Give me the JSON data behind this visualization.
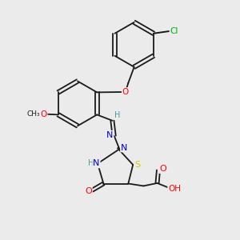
{
  "bg_color": "#ebebeb",
  "bond_color": "#1a1a1a",
  "atom_colors": {
    "O": "#ff0000",
    "N": "#0000cc",
    "S": "#cccc00",
    "Cl": "#00aa00",
    "C": "#1a1a1a",
    "H": "#4a9a9a"
  },
  "figsize": [
    3.0,
    3.0
  ],
  "dpi": 100
}
